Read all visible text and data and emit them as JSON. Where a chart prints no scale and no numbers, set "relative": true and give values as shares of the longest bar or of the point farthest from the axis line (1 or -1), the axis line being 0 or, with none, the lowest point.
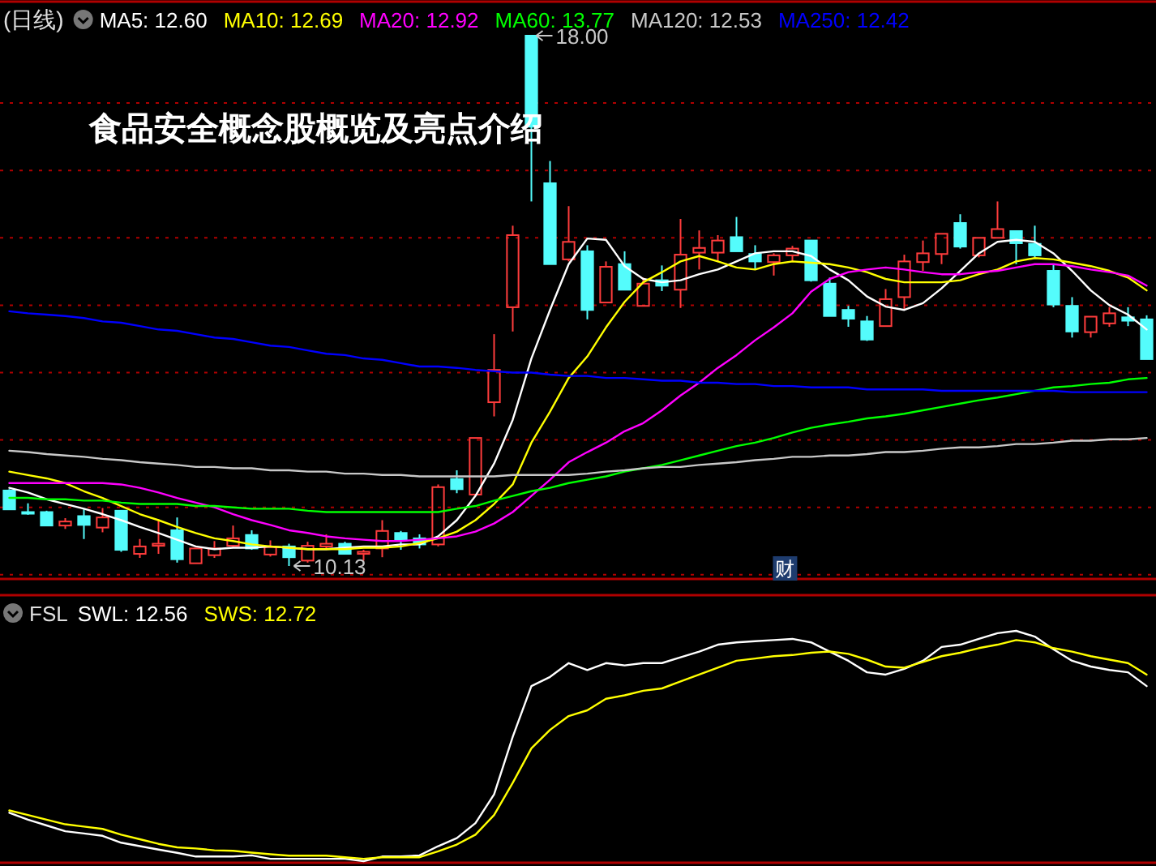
{
  "chart_data": [
    {
      "type": "candlestick",
      "title": "食品安全概念股概览及亮点介绍",
      "subtitle": "(日线)",
      "legend": "top left",
      "grid": "y",
      "categories": [
        null,
        null,
        null,
        null,
        null,
        null,
        null,
        null,
        null,
        null,
        null,
        null,
        null,
        null,
        null,
        null,
        null,
        null,
        null,
        null,
        null,
        null,
        null,
        null,
        null,
        null,
        null,
        null,
        null,
        null,
        null,
        null,
        null,
        null,
        null,
        null,
        null,
        null,
        null,
        null,
        null,
        null,
        null,
        null,
        null,
        null,
        null,
        null,
        null,
        null,
        null,
        null,
        null,
        null,
        null,
        null,
        null,
        null,
        null,
        null,
        null,
        null
      ],
      "yticks": [
        {
          "value": 10,
          "label": null
        },
        {
          "value": 11,
          "label": null
        },
        {
          "value": 12,
          "label": null
        },
        {
          "value": 13,
          "label": null
        },
        {
          "value": 14,
          "label": null
        },
        {
          "value": 15,
          "label": null
        },
        {
          "value": 16,
          "label": null
        },
        {
          "value": 17,
          "label": null
        }
      ],
      "ohlc": [
        [
          11.25,
          11.27,
          10.96,
          10.97
        ],
        [
          10.93,
          11.06,
          10.89,
          10.92
        ],
        [
          10.93,
          10.95,
          10.73,
          10.73
        ],
        [
          10.73,
          10.84,
          10.68,
          10.79
        ],
        [
          10.87,
          10.97,
          10.53,
          10.74
        ],
        [
          10.7,
          10.99,
          10.63,
          10.85
        ],
        [
          10.95,
          10.96,
          10.34,
          10.37
        ],
        [
          10.31,
          10.53,
          10.25,
          10.42
        ],
        [
          10.43,
          10.82,
          10.31,
          10.46
        ],
        [
          10.66,
          10.85,
          10.18,
          10.23
        ],
        [
          10.17,
          10.39,
          10.17,
          10.39
        ],
        [
          10.29,
          10.5,
          10.25,
          10.39
        ],
        [
          10.43,
          10.73,
          10.41,
          10.54
        ],
        [
          10.59,
          10.66,
          10.37,
          10.39
        ],
        [
          10.3,
          10.51,
          10.27,
          10.41
        ],
        [
          10.42,
          10.46,
          10.13,
          10.26
        ],
        [
          10.21,
          10.49,
          10.18,
          10.43
        ],
        [
          10.42,
          10.6,
          10.37,
          10.46
        ],
        [
          10.46,
          10.49,
          10.3,
          10.31
        ],
        [
          10.31,
          10.37,
          10.21,
          10.34
        ],
        [
          10.39,
          10.81,
          10.26,
          10.65
        ],
        [
          10.62,
          10.65,
          10.37,
          10.52
        ],
        [
          10.54,
          10.6,
          10.39,
          10.45
        ],
        [
          10.45,
          11.34,
          10.42,
          11.3
        ],
        [
          11.42,
          11.55,
          11.21,
          11.27
        ],
        [
          11.19,
          12.03,
          11.19,
          12.03
        ],
        [
          12.56,
          13.57,
          12.35,
          13.04
        ],
        [
          13.97,
          15.18,
          13.61,
          15.04
        ],
        [
          18.0,
          18.0,
          15.54,
          16.65
        ],
        [
          15.81,
          16.14,
          14.61,
          14.61
        ],
        [
          14.68,
          15.47,
          14.65,
          14.94
        ],
        [
          14.8,
          14.89,
          13.79,
          13.93
        ],
        [
          14.04,
          14.65,
          14.04,
          14.57
        ],
        [
          14.61,
          14.8,
          14.23,
          14.23
        ],
        [
          13.99,
          14.41,
          13.99,
          14.32
        ],
        [
          14.37,
          14.59,
          14.21,
          14.29
        ],
        [
          14.23,
          15.28,
          13.96,
          14.75
        ],
        [
          14.78,
          15.11,
          14.53,
          14.85
        ],
        [
          14.78,
          15.04,
          14.64,
          14.96
        ],
        [
          15.01,
          15.31,
          14.8,
          14.8
        ],
        [
          14.76,
          14.89,
          14.53,
          14.65
        ],
        [
          14.64,
          14.77,
          14.44,
          14.74
        ],
        [
          14.74,
          14.88,
          14.65,
          14.84
        ],
        [
          14.96,
          14.96,
          14.35,
          14.37
        ],
        [
          14.32,
          14.41,
          13.84,
          13.84
        ],
        [
          13.93,
          13.99,
          13.68,
          13.8
        ],
        [
          13.76,
          13.84,
          13.47,
          13.49
        ],
        [
          13.69,
          14.24,
          13.69,
          14.09
        ],
        [
          14.12,
          14.75,
          13.92,
          14.65
        ],
        [
          14.64,
          14.96,
          14.51,
          14.77
        ],
        [
          14.76,
          15.06,
          14.61,
          15.06
        ],
        [
          15.22,
          15.35,
          14.84,
          14.87
        ],
        [
          14.74,
          15.0,
          14.71,
          15.0
        ],
        [
          15.0,
          15.54,
          15.0,
          15.13
        ],
        [
          15.1,
          15.1,
          14.61,
          14.92
        ],
        [
          14.91,
          15.18,
          14.69,
          14.74
        ],
        [
          14.51,
          14.61,
          13.97,
          14.01
        ],
        [
          13.99,
          14.12,
          13.52,
          13.61
        ],
        [
          13.6,
          13.83,
          13.52,
          13.83
        ],
        [
          13.73,
          13.97,
          13.68,
          13.88
        ],
        [
          13.82,
          13.97,
          13.69,
          13.77
        ],
        [
          13.79,
          13.85,
          13.2,
          13.2
        ]
      ],
      "series": [
        {
          "name": "MA5: 12.60",
          "type": "line",
          "color": "#ffffff",
          "values": [
            11.29,
            11.22,
            11.12,
            11.05,
            10.98,
            10.9,
            10.81,
            10.71,
            10.62,
            10.52,
            10.42,
            10.38,
            10.4,
            10.4,
            10.42,
            10.4,
            10.38,
            10.38,
            10.4,
            10.42,
            10.42,
            10.45,
            10.45,
            10.57,
            10.81,
            11.17,
            11.65,
            12.3,
            13.21,
            13.93,
            14.61,
            14.99,
            14.97,
            14.58,
            14.39,
            14.34,
            14.37,
            14.46,
            14.53,
            14.65,
            14.77,
            14.8,
            14.8,
            14.73,
            14.53,
            14.37,
            14.13,
            13.98,
            13.93,
            14.03,
            14.25,
            14.51,
            14.77,
            14.94,
            14.97,
            14.94,
            14.77,
            14.51,
            14.22,
            14.0,
            13.86,
            13.64
          ]
        },
        {
          "name": "MA10: 12.69",
          "type": "line",
          "color": "#ffff00",
          "values": [
            11.53,
            11.48,
            11.43,
            11.36,
            11.24,
            11.14,
            11.02,
            10.9,
            10.81,
            10.71,
            10.62,
            10.54,
            10.5,
            10.45,
            10.42,
            10.4,
            10.38,
            10.38,
            10.38,
            10.4,
            10.4,
            10.42,
            10.47,
            10.54,
            10.64,
            10.81,
            11.05,
            11.34,
            11.96,
            12.42,
            12.92,
            13.24,
            13.67,
            14.05,
            14.34,
            14.49,
            14.65,
            14.73,
            14.65,
            14.56,
            14.53,
            14.61,
            14.65,
            14.63,
            14.61,
            14.56,
            14.49,
            14.39,
            14.34,
            14.34,
            14.34,
            14.37,
            14.46,
            14.53,
            14.65,
            14.7,
            14.68,
            14.63,
            14.58,
            14.51,
            14.41,
            14.22
          ]
        },
        {
          "name": "MA20: 12.92",
          "type": "line",
          "color": "#ff00ff",
          "values": [
            11.36,
            11.36,
            11.36,
            11.36,
            11.36,
            11.36,
            11.34,
            11.29,
            11.22,
            11.14,
            11.07,
            11.0,
            10.9,
            10.81,
            10.74,
            10.66,
            10.62,
            10.57,
            10.54,
            10.52,
            10.5,
            10.5,
            10.52,
            10.54,
            10.57,
            10.64,
            10.76,
            10.93,
            11.17,
            11.41,
            11.67,
            11.82,
            11.96,
            12.13,
            12.25,
            12.44,
            12.66,
            12.85,
            13.07,
            13.26,
            13.48,
            13.67,
            13.88,
            14.2,
            14.39,
            14.49,
            14.53,
            14.56,
            14.53,
            14.49,
            14.46,
            14.46,
            14.49,
            14.51,
            14.56,
            14.61,
            14.61,
            14.58,
            14.53,
            14.49,
            14.44,
            14.29
          ]
        },
        {
          "name": "MA60: 13.77",
          "type": "line",
          "color": "#00ff00",
          "values": [
            11.14,
            11.14,
            11.12,
            11.12,
            11.1,
            11.1,
            11.07,
            11.05,
            11.05,
            11.05,
            11.02,
            11.02,
            11.0,
            10.98,
            10.98,
            10.98,
            10.95,
            10.93,
            10.93,
            10.93,
            10.93,
            10.93,
            10.93,
            10.93,
            10.98,
            11.02,
            11.1,
            11.17,
            11.24,
            11.29,
            11.36,
            11.41,
            11.46,
            11.53,
            11.58,
            11.63,
            11.7,
            11.77,
            11.84,
            11.91,
            11.96,
            12.03,
            12.11,
            12.18,
            12.23,
            12.27,
            12.32,
            12.35,
            12.39,
            12.44,
            12.49,
            12.54,
            12.59,
            12.63,
            12.68,
            12.73,
            12.78,
            12.8,
            12.83,
            12.85,
            12.9,
            12.92
          ]
        },
        {
          "name": "MA120: 12.53",
          "type": "line",
          "color": "#c8c8c8",
          "values": [
            11.84,
            11.82,
            11.79,
            11.77,
            11.75,
            11.72,
            11.7,
            11.67,
            11.65,
            11.63,
            11.6,
            11.6,
            11.58,
            11.58,
            11.55,
            11.55,
            11.53,
            11.53,
            11.5,
            11.5,
            11.48,
            11.48,
            11.46,
            11.46,
            11.46,
            11.46,
            11.46,
            11.48,
            11.48,
            11.48,
            11.48,
            11.5,
            11.53,
            11.55,
            11.58,
            11.6,
            11.6,
            11.63,
            11.65,
            11.67,
            11.7,
            11.72,
            11.75,
            11.75,
            11.77,
            11.77,
            11.79,
            11.82,
            11.82,
            11.84,
            11.87,
            11.89,
            11.89,
            11.91,
            11.94,
            11.94,
            11.96,
            11.99,
            11.99,
            12.01,
            12.01,
            12.03
          ]
        },
        {
          "name": "MA250: 12.42",
          "type": "line",
          "color": "#0000ff",
          "values": [
            13.91,
            13.88,
            13.86,
            13.84,
            13.81,
            13.76,
            13.74,
            13.69,
            13.64,
            13.62,
            13.57,
            13.52,
            13.5,
            13.45,
            13.4,
            13.38,
            13.33,
            13.28,
            13.26,
            13.21,
            13.19,
            13.14,
            13.09,
            13.09,
            13.07,
            13.04,
            13.02,
            13.0,
            13.0,
            12.97,
            12.95,
            12.95,
            12.92,
            12.92,
            12.9,
            12.88,
            12.88,
            12.85,
            12.85,
            12.83,
            12.83,
            12.8,
            12.8,
            12.78,
            12.78,
            12.78,
            12.75,
            12.75,
            12.75,
            12.75,
            12.73,
            12.73,
            12.73,
            12.73,
            12.73,
            12.73,
            12.73,
            12.71,
            12.71,
            12.71,
            12.71,
            12.71
          ]
        }
      ],
      "annotations": [
        "18.00",
        "10.13",
        "财"
      ]
    },
    {
      "type": "line",
      "title": "FSL",
      "relative": true,
      "legend": "top left",
      "categories": [
        null,
        null,
        null,
        null,
        null,
        null,
        null,
        null,
        null,
        null,
        null,
        null,
        null,
        null,
        null,
        null,
        null,
        null,
        null,
        null,
        null,
        null,
        null,
        null,
        null,
        null,
        null,
        null,
        null,
        null,
        null,
        null,
        null,
        null,
        null,
        null,
        null,
        null,
        null,
        null,
        null,
        null,
        null,
        null,
        null,
        null,
        null,
        null,
        null,
        null,
        null,
        null,
        null,
        null,
        null,
        null,
        null,
        null,
        null,
        null,
        null,
        null
      ],
      "series": [
        {
          "name": "SWL: 12.56",
          "color": "#ffffff",
          "values": [
            0.21,
            0.18,
            0.155,
            0.13,
            0.12,
            0.11,
            0.08,
            0.065,
            0.05,
            0.036,
            0.02,
            0.02,
            0.02,
            0.025,
            0.01,
            0.01,
            0.01,
            0.01,
            0.01,
            0,
            0.02,
            0.02,
            0.025,
            0.065,
            0.1,
            0.165,
            0.29,
            0.54,
            0.76,
            0.8,
            0.86,
            0.83,
            0.86,
            0.85,
            0.86,
            0.86,
            0.885,
            0.91,
            0.94,
            0.95,
            0.955,
            0.96,
            0.965,
            0.95,
            0.91,
            0.87,
            0.82,
            0.81,
            0.835,
            0.87,
            0.93,
            0.94,
            0.965,
            0.99,
            1,
            0.975,
            0.92,
            0.87,
            0.845,
            0.83,
            0.82,
            0.76
          ]
        },
        {
          "name": "SWS: 12.72",
          "color": "#ffff00",
          "values": [
            0.22,
            0.2,
            0.18,
            0.16,
            0.15,
            0.14,
            0.115,
            0.095,
            0.075,
            0.06,
            0.055,
            0.047,
            0.045,
            0.037,
            0.03,
            0.024,
            0.024,
            0.024,
            0.017,
            0.01,
            0.017,
            0.017,
            0.017,
            0.043,
            0.072,
            0.115,
            0.2,
            0.34,
            0.49,
            0.57,
            0.63,
            0.655,
            0.705,
            0.72,
            0.74,
            0.75,
            0.78,
            0.81,
            0.84,
            0.87,
            0.88,
            0.89,
            0.895,
            0.905,
            0.91,
            0.9,
            0.875,
            0.845,
            0.84,
            0.865,
            0.89,
            0.905,
            0.925,
            0.94,
            0.96,
            0.95,
            0.925,
            0.91,
            0.89,
            0.875,
            0.86,
            0.81
          ]
        }
      ]
    }
  ]
}
